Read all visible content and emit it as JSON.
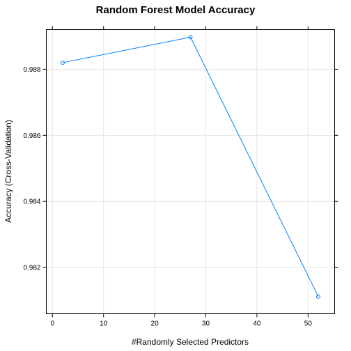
{
  "chart_data": {
    "type": "line",
    "title": "Random Forest Model Accuracy",
    "xlabel": "#Randomly Selected Predictors",
    "ylabel": "Accuracy (Cross-Validation)",
    "x": [
      2,
      27,
      52
    ],
    "y": [
      0.9882,
      0.98897,
      0.98112
    ],
    "xlim": [
      -1.2,
      55.2
    ],
    "ylim": [
      0.9806,
      0.9892
    ],
    "xticks": [
      0,
      10,
      20,
      30,
      40,
      50
    ],
    "xtick_labels": [
      "0",
      "10",
      "20",
      "30",
      "40",
      "50"
    ],
    "yticks": [
      0.982,
      0.984,
      0.986,
      0.988
    ],
    "ytick_labels": [
      "0.982",
      "0.984",
      "0.986",
      "0.988"
    ],
    "grid": true,
    "colors": {
      "series": "#0080ff",
      "grid": "#e6e6e6",
      "frame": "#000000"
    }
  }
}
